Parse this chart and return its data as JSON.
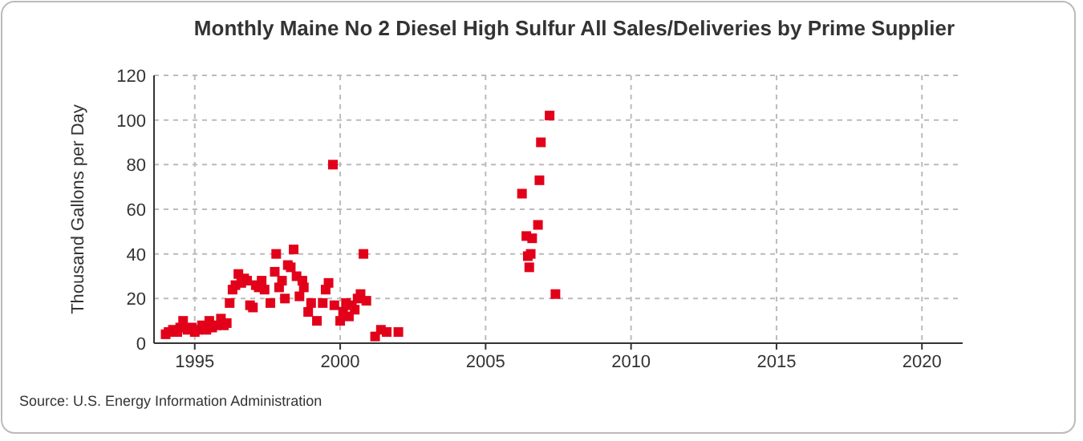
{
  "chart_data": {
    "type": "scatter",
    "title": "Monthly Maine No 2 Diesel High Sulfur All Sales/Deliveries by Prime Supplier",
    "ylabel": "Thousand Gallons per Day",
    "annotations": [
      "Source: U.S. Energy Information Administration"
    ],
    "x": [
      1994.0,
      1994.1,
      1994.25,
      1994.4,
      1994.5,
      1994.6,
      1994.75,
      1994.9,
      1995.0,
      1995.1,
      1995.25,
      1995.4,
      1995.5,
      1995.6,
      1995.75,
      1995.9,
      1996.0,
      1996.1,
      1996.2,
      1996.3,
      1996.4,
      1996.5,
      1996.6,
      1996.7,
      1996.8,
      1996.9,
      1997.0,
      1997.1,
      1997.2,
      1997.3,
      1997.4,
      1997.6,
      1997.75,
      1997.8,
      1997.9,
      1998.0,
      1998.1,
      1998.2,
      1998.3,
      1998.4,
      1998.5,
      1998.6,
      1998.7,
      1998.75,
      1998.9,
      1999.0,
      1999.2,
      1999.4,
      1999.5,
      1999.6,
      1999.75,
      1999.8,
      2000.0,
      2000.1,
      2000.2,
      2000.3,
      2000.4,
      2000.5,
      2000.6,
      2000.7,
      2000.8,
      2000.9,
      2001.2,
      2001.4,
      2001.6,
      2002.0,
      2006.25,
      2006.4,
      2006.45,
      2006.5,
      2006.55,
      2006.6,
      2006.8,
      2006.85,
      2006.9,
      2007.2,
      2007.4
    ],
    "values": [
      4,
      5,
      6,
      5,
      7,
      10,
      6,
      7,
      5,
      6,
      8,
      6,
      10,
      7,
      8,
      11,
      8,
      9,
      18,
      24,
      26,
      31,
      27,
      29,
      28,
      17,
      16,
      26,
      25,
      28,
      24,
      18,
      32,
      40,
      25,
      28,
      20,
      35,
      34,
      42,
      30,
      21,
      28,
      25,
      14,
      18,
      10,
      18,
      24,
      27,
      80,
      17,
      10,
      14,
      18,
      12,
      17,
      15,
      20,
      22,
      40,
      19,
      3,
      6,
      5,
      5,
      67,
      48,
      39,
      34,
      40,
      47,
      53,
      73,
      90,
      102,
      22
    ],
    "color": "#e2001a",
    "marker": "square",
    "xlim": [
      1993.6,
      2021.4
    ],
    "xticks": [
      1995,
      2000,
      2005,
      2010,
      2015,
      2020
    ],
    "ylim": [
      0,
      120
    ],
    "yticks": [
      0,
      20,
      40,
      60,
      80,
      100,
      120
    ],
    "grid": true
  }
}
